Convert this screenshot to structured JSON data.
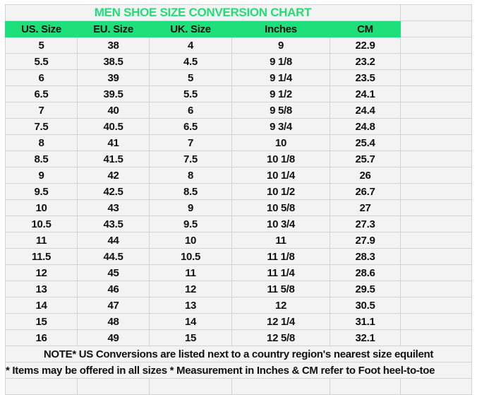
{
  "title": "MEN SHOE SIZE CONVERSION CHART",
  "colors": {
    "header_bg": "#1ee07a",
    "title_text": "#22dd77",
    "cell_bg": "#f3f3f3",
    "grid": "#d3d3d3"
  },
  "columns": [
    "US. Size",
    "EU. Size",
    "UK. Size",
    "Inches",
    "CM"
  ],
  "rows": [
    [
      "5",
      "38",
      "4",
      "9",
      "22.9"
    ],
    [
      "5.5",
      "38.5",
      "4.5",
      "9 1/8",
      "23.2"
    ],
    [
      "6",
      "39",
      "5",
      "9 1/4",
      "23.5"
    ],
    [
      "6.5",
      "39.5",
      "5.5",
      "9 1/2",
      "24.1"
    ],
    [
      "7",
      "40",
      "6",
      "9 5/8",
      "24.4"
    ],
    [
      "7.5",
      "40.5",
      "6.5",
      "9 3/4",
      "24.8"
    ],
    [
      "8",
      "41",
      "7",
      "10",
      "25.4"
    ],
    [
      "8.5",
      "41.5",
      "7.5",
      "10 1/8",
      "25.7"
    ],
    [
      "9",
      "42",
      "8",
      "10 1/4",
      "26"
    ],
    [
      "9.5",
      "42.5",
      "8.5",
      "10 1/2",
      "26.7"
    ],
    [
      "10",
      "43",
      "9",
      "10 5/8",
      "27"
    ],
    [
      "10.5",
      "43.5",
      "9.5",
      "10 3/4",
      "27.3"
    ],
    [
      "11",
      "44",
      "10",
      "11",
      "27.9"
    ],
    [
      "11.5",
      "44.5",
      "10.5",
      "11 1/8",
      "28.3"
    ],
    [
      "12",
      "45",
      "11",
      "11 1/4",
      "28.6"
    ],
    [
      "13",
      "46",
      "12",
      "11 5/8",
      "29.5"
    ],
    [
      "14",
      "47",
      "13",
      "12",
      "30.5"
    ],
    [
      "15",
      "48",
      "14",
      "12 1/4",
      "31.1"
    ],
    [
      "16",
      "49",
      "15",
      "12 5/8",
      "32.1"
    ]
  ],
  "notes": [
    "NOTE* US Conversions are listed next to a country region's nearest size equilent",
    "* Items may be offered in all sizes * Measurement in Inches & CM refer to Foot heel-to-toe"
  ]
}
